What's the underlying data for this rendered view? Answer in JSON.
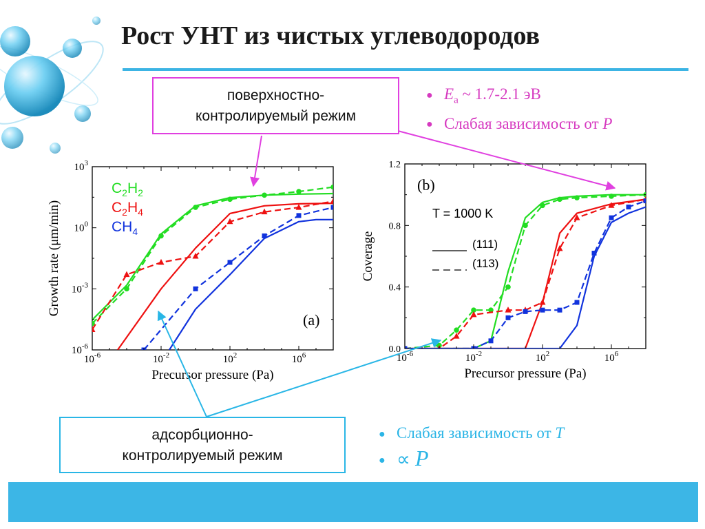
{
  "slide": {
    "title": "Рост УНТ из чистых углеводородов",
    "accent_color": "#3cb4e4"
  },
  "boxes": {
    "surface": {
      "line1": "поверхностно-",
      "line2": "контролируемый режим",
      "border_color": "#e040e0"
    },
    "adsorption": {
      "line1": "адсорбционно-",
      "line2": "контролируемый режим",
      "border_color": "#29b6e6"
    }
  },
  "bullets_top": {
    "color": "#d63ac0",
    "item1": {
      "var": "E",
      "sub": "a",
      "text": " ~ 1.7-2.1 эВ"
    },
    "item2": {
      "text": "Слабая зависимость от ",
      "var": "P"
    }
  },
  "bullets_bottom": {
    "color": "#2bb5e6",
    "item1": {
      "text": "Слабая зависимость от ",
      "var": "T"
    },
    "item2": {
      "symbol": "∝",
      "var": "P"
    }
  },
  "chart_data": [
    {
      "type": "line",
      "panel_label": "(a)",
      "xlabel": "Precursor pressure (Pa)",
      "ylabel": "Growth rate (μm/min)",
      "x_scale": "log",
      "y_scale": "log",
      "xlim": [
        1e-06,
        100000000.0
      ],
      "ylim": [
        1e-06,
        1000.0
      ],
      "x_ticks": [
        {
          "base": "10",
          "exp": "-6"
        },
        {
          "base": "10",
          "exp": "-2"
        },
        {
          "base": "10",
          "exp": "2"
        },
        {
          "base": "10",
          "exp": "6"
        }
      ],
      "y_ticks": [
        {
          "base": "10",
          "exp": "-6"
        },
        {
          "base": "10",
          "exp": "-3"
        },
        {
          "base": "10",
          "exp": "0"
        },
        {
          "base": "10",
          "exp": "3"
        }
      ],
      "legend": [
        {
          "main": "C",
          "sub1": "2",
          "mid": "H",
          "sub2": "2",
          "color": "#22dd22"
        },
        {
          "main": "C",
          "sub1": "2",
          "mid": "H",
          "sub2": "4",
          "color": "#ee1111"
        },
        {
          "main": "CH",
          "sub1": "4",
          "mid": "",
          "sub2": "",
          "color": "#1133dd"
        }
      ],
      "series": [
        {
          "name": "C2H2",
          "color": "#22dd22",
          "style": "solid",
          "x": [
            1e-06,
            0.0001,
            0.01,
            1.0,
            100.0,
            10000.0,
            1000000.0,
            100000000.0
          ],
          "y": [
            3e-05,
            0.0015,
            0.5,
            12,
            30,
            40,
            45,
            48
          ]
        },
        {
          "name": "C2H2",
          "color": "#22dd22",
          "style": "dashed",
          "marker": "circle",
          "x": [
            1e-06,
            0.0001,
            0.01,
            1.0,
            100.0,
            10000.0,
            1000000.0,
            100000000.0
          ],
          "y": [
            2e-05,
            0.001,
            0.4,
            10,
            25,
            40,
            60,
            100
          ]
        },
        {
          "name": "C2H4",
          "color": "#ee1111",
          "style": "solid",
          "x": [
            3e-05,
            0.01,
            1.0,
            100.0,
            10000.0,
            1000000.0,
            100000000.0
          ],
          "y": [
            1e-06,
            0.001,
            0.1,
            5,
            12,
            15,
            16
          ]
        },
        {
          "name": "C2H4",
          "color": "#ee1111",
          "style": "dashed",
          "marker": "triangle",
          "x": [
            1e-06,
            0.0001,
            0.01,
            1.0,
            100.0,
            10000.0,
            1000000.0,
            100000000.0
          ],
          "y": [
            1e-05,
            0.005,
            0.02,
            0.04,
            2,
            6,
            10,
            20
          ]
        },
        {
          "name": "CH4",
          "color": "#1133dd",
          "style": "solid",
          "x": [
            0.03,
            1.0,
            100.0,
            10000.0,
            1000000.0,
            10000000.0,
            100000000.0
          ],
          "y": [
            1e-06,
            0.0001,
            0.005,
            0.3,
            2,
            2.5,
            2.5
          ]
        },
        {
          "name": "CH4",
          "color": "#1133dd",
          "style": "dashed",
          "marker": "square",
          "x": [
            0.001,
            1.0,
            100.0,
            10000.0,
            1000000.0,
            100000000.0
          ],
          "y": [
            1e-06,
            0.001,
            0.02,
            0.4,
            4,
            10
          ]
        }
      ]
    },
    {
      "type": "line",
      "panel_label": "(b)",
      "annotation": "T = 1000 K",
      "xlabel": "Precursor pressure (Pa)",
      "ylabel": "Coverage",
      "x_scale": "log",
      "xlim": [
        1e-06,
        100000000.0
      ],
      "ylim": [
        0,
        1.2
      ],
      "x_ticks": [
        {
          "base": "10",
          "exp": "-6"
        },
        {
          "base": "10",
          "exp": "-2"
        },
        {
          "base": "10",
          "exp": "2"
        },
        {
          "base": "10",
          "exp": "6"
        }
      ],
      "y_ticks": [
        "0.0",
        "0.4",
        "0.8",
        "1.2"
      ],
      "legend": [
        {
          "label": "(111)",
          "style": "solid"
        },
        {
          "label": "(113)",
          "style": "dashed"
        }
      ],
      "series": [
        {
          "name": "C2H2 (111)",
          "color": "#22dd22",
          "style": "solid",
          "x": [
            1e-06,
            0.01,
            0.1,
            1,
            10,
            100,
            1000.0,
            10000.0,
            1000000.0,
            100000000.0
          ],
          "y": [
            0,
            0,
            0.05,
            0.5,
            0.85,
            0.95,
            0.98,
            0.99,
            1.0,
            1.0
          ]
        },
        {
          "name": "C2H2 (113)",
          "color": "#22dd22",
          "style": "dashed",
          "marker": "circle",
          "x": [
            1e-06,
            0.0001,
            0.001,
            0.01,
            0.1,
            1,
            10,
            100,
            1000.0,
            10000.0,
            1000000.0,
            100000000.0
          ],
          "y": [
            0,
            0.02,
            0.12,
            0.25,
            0.25,
            0.4,
            0.8,
            0.93,
            0.97,
            0.98,
            0.99,
            1.0
          ]
        },
        {
          "name": "C2H4 (111)",
          "color": "#ee1111",
          "style": "solid",
          "x": [
            1e-06,
            10,
            100,
            1000.0,
            10000.0,
            1000000.0,
            100000000.0
          ],
          "y": [
            0,
            0,
            0.3,
            0.75,
            0.88,
            0.94,
            0.97
          ]
        },
        {
          "name": "C2H4 (113)",
          "color": "#ee1111",
          "style": "dashed",
          "marker": "triangle",
          "x": [
            1e-06,
            0.0001,
            0.001,
            0.01,
            1,
            10,
            100,
            1000.0,
            10000.0,
            1000000.0,
            100000000.0
          ],
          "y": [
            0,
            0,
            0.08,
            0.22,
            0.25,
            0.25,
            0.3,
            0.65,
            0.85,
            0.93,
            0.97
          ]
        },
        {
          "name": "CH4 (111)",
          "color": "#1133dd",
          "style": "solid",
          "x": [
            1e-06,
            1000.0,
            10000.0,
            100000.0,
            1000000.0,
            10000000.0,
            100000000.0
          ],
          "y": [
            0,
            0,
            0.15,
            0.6,
            0.82,
            0.88,
            0.92
          ]
        },
        {
          "name": "CH4 (113)",
          "color": "#1133dd",
          "style": "dashed",
          "marker": "square",
          "x": [
            1e-06,
            0.01,
            0.1,
            1,
            10,
            100,
            1000.0,
            10000.0,
            100000.0,
            1000000.0,
            10000000.0,
            100000000.0
          ],
          "y": [
            0,
            0,
            0.05,
            0.2,
            0.24,
            0.25,
            0.25,
            0.3,
            0.62,
            0.85,
            0.92,
            0.96
          ]
        }
      ]
    }
  ]
}
